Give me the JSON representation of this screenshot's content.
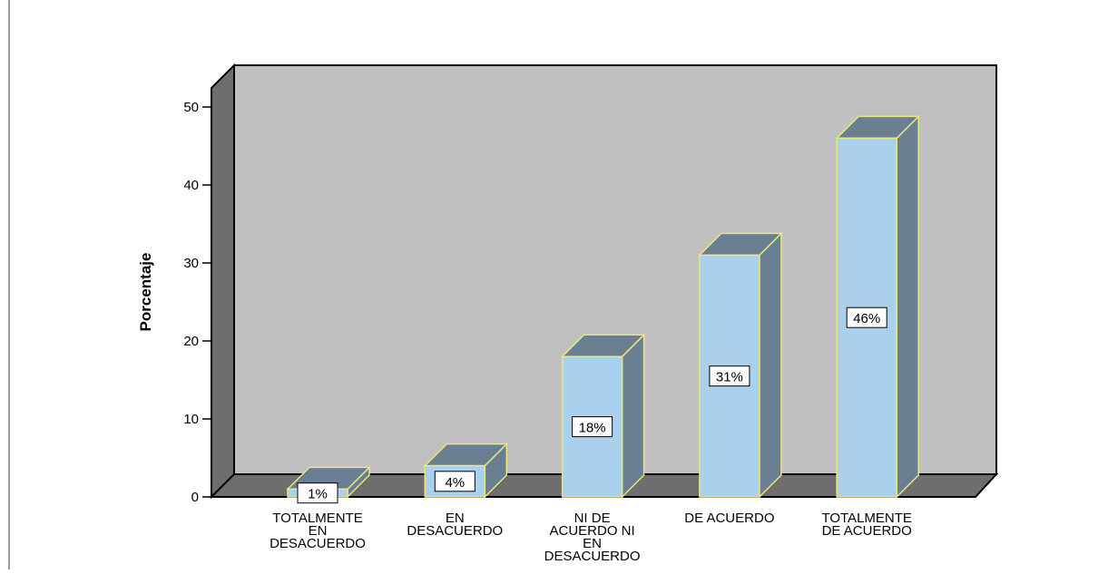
{
  "chart_data": {
    "type": "bar3d",
    "y_label": "Porcentaje",
    "categories": [
      "TOTALMENTE EN DESACUERDO",
      "EN DESACUERDO",
      "NI DE ACUERDO NI EN DESACUERDO",
      "DE ACUERDO",
      "TOTALMENTE DE ACUERDO"
    ],
    "values": [
      1,
      4,
      18,
      31,
      46
    ],
    "value_labels": [
      "1%",
      "4%",
      "18%",
      "31%",
      "46%"
    ],
    "color": "#abd0ee",
    "ylim": [
      0,
      52.5
    ],
    "yticks": [
      0,
      10,
      20,
      30,
      40,
      50
    ]
  }
}
